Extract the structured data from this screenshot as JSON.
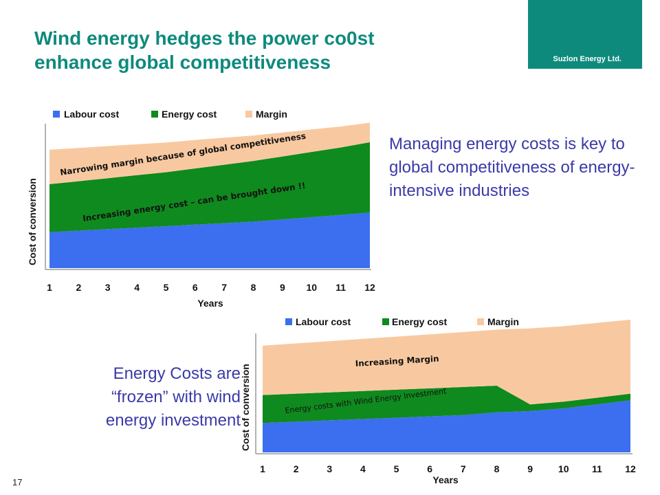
{
  "slide": {
    "title_line1": "Wind energy hedges the power co0st",
    "title_line2": "enhance global competitiveness",
    "brand": "Suzlon Energy Ltd.",
    "right_text": "Managing energy costs is key to global competitiveness of energy-intensive industries",
    "left_text_line1": "Energy Costs are",
    "left_text_line2": "“frozen” with wind",
    "left_text_line3": "energy investment",
    "page_number": "17"
  },
  "colors": {
    "brand": "#0e8a7d",
    "body_text": "#3a3aa8",
    "labour": "#3b6ff0",
    "energy": "#0f8a1e",
    "margin": "#f8c9a0"
  },
  "chart_data": [
    {
      "type": "area",
      "stacked": true,
      "legend": [
        "Labour cost",
        "Energy cost",
        "Margin"
      ],
      "legend_placement": "top",
      "x": [
        1,
        2,
        3,
        4,
        5,
        6,
        7,
        8,
        9,
        10,
        11,
        12
      ],
      "xlabel": "Years",
      "ylabel": "Cost of conversion",
      "ylim": [
        0,
        100
      ],
      "series": [
        {
          "name": "Labour cost",
          "values": [
            24,
            25,
            26,
            27,
            28,
            29,
            30,
            31,
            32.5,
            34,
            35.5,
            37
          ]
        },
        {
          "name": "Energy cost",
          "values": [
            32,
            33,
            34,
            35,
            36,
            37.5,
            39,
            40.5,
            42,
            43.5,
            45,
            47
          ]
        },
        {
          "name": "Margin",
          "values": [
            23,
            22.2,
            21.4,
            20.6,
            19.8,
            19,
            18,
            17,
            16,
            15,
            14,
            13
          ]
        }
      ],
      "annotations": [
        "Narrowing margin because of global competitiveness",
        "Increasing energy cost – can be brought down !!"
      ],
      "grid": false
    },
    {
      "type": "area",
      "stacked": true,
      "legend": [
        "Labour cost",
        "Energy cost",
        "Margin"
      ],
      "legend_placement": "top",
      "x": [
        1,
        2,
        3,
        4,
        5,
        6,
        7,
        8,
        9,
        10,
        11,
        12
      ],
      "xlabel": "Years",
      "ylabel": "Cost of conversion",
      "ylim": [
        0,
        100
      ],
      "series": [
        {
          "name": "Labour cost",
          "values": [
            22,
            23,
            24,
            25,
            26,
            27,
            28,
            30,
            31,
            33,
            36,
            39
          ]
        },
        {
          "name": "Energy cost",
          "values": [
            21,
            21,
            21,
            21,
            21,
            21,
            21,
            20,
            5,
            5,
            5,
            5
          ]
        },
        {
          "name": "Margin",
          "values": [
            37,
            37.7,
            38.4,
            39.1,
            39.8,
            40.5,
            41.2,
            42,
            57,
            56.6,
            56.1,
            55.5
          ]
        }
      ],
      "annotations": [
        "Increasing Margin",
        "Energy costs with Wind Energy Investment"
      ],
      "grid": false
    }
  ]
}
